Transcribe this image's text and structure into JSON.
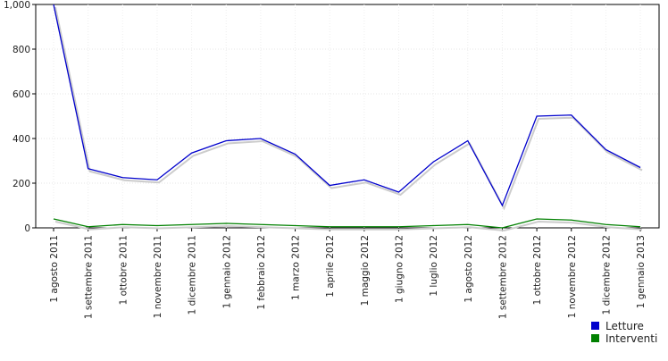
{
  "chart_data": {
    "type": "line",
    "categories": [
      "1 agosto 2011",
      "1 settembre 2011",
      "1 ottobre 2011",
      "1 novembre 2011",
      "1 dicembre 2011",
      "1 gennaio 2012",
      "1 febbraio 2012",
      "1 marzo 2012",
      "1 aprile 2012",
      "1 maggio 2012",
      "1 giugno 2012",
      "1 luglio 2012",
      "1 agosto 2012",
      "1 settembre 2012",
      "1 ottobre 2012",
      "1 novembre 2012",
      "1 dicembre 2012",
      "1 gennaio 2013"
    ],
    "series": [
      {
        "name": "Letture",
        "color": "#0000cc",
        "values": [
          1000,
          265,
          225,
          215,
          335,
          390,
          400,
          330,
          190,
          215,
          160,
          295,
          390,
          100,
          500,
          505,
          350,
          270
        ]
      },
      {
        "name": "Interventi",
        "color": "#008000",
        "values": [
          40,
          5,
          15,
          10,
          15,
          20,
          15,
          10,
          5,
          5,
          5,
          10,
          15,
          0,
          40,
          35,
          15,
          5
        ]
      }
    ],
    "ylim": [
      0,
      1000
    ],
    "yticks": [
      0,
      200,
      400,
      600,
      800,
      {
        "value": 1000,
        "label": "1,000"
      }
    ],
    "grid": true,
    "legend": "bottom-right"
  }
}
